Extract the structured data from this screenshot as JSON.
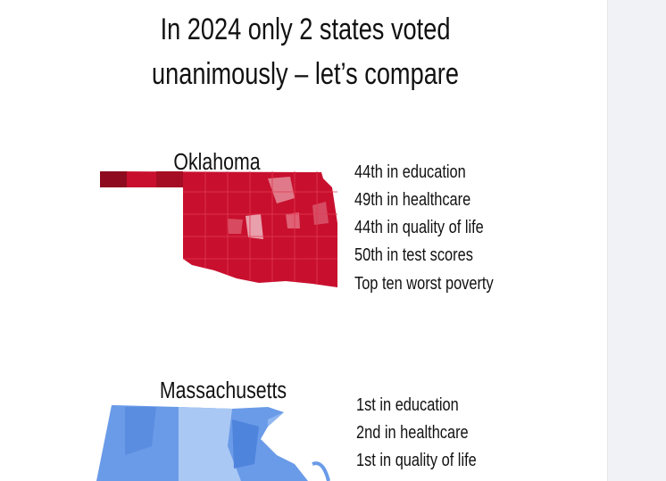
{
  "title": {
    "lines": [
      "In 2024 only 2 states voted",
      "unanimously – let’s compare"
    ]
  },
  "sections": [
    {
      "state": "Oklahoma",
      "facts": [
        "44th in education",
        "49th in healthcare",
        "44th in quality of life",
        "50th in test scores",
        "Top ten worst poverty"
      ]
    },
    {
      "state": "Massachusetts",
      "facts": [
        "1st in education",
        "2nd in healthcare",
        "1st in quality of life"
      ]
    }
  ]
}
